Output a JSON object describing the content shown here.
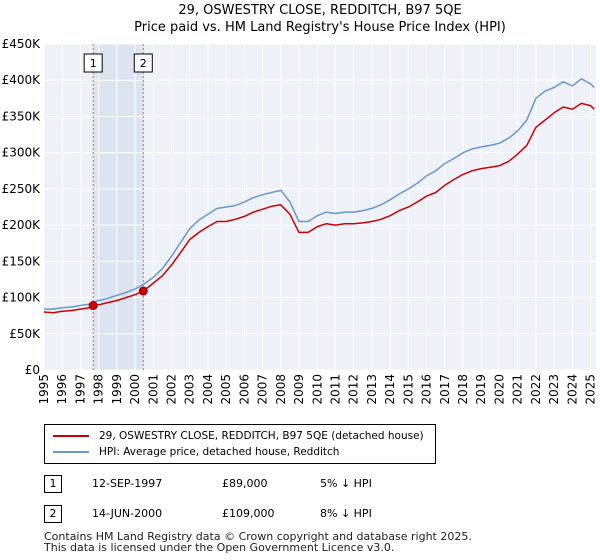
{
  "chart_data": {
    "type": "line",
    "title": "29, OSWESTRY CLOSE, REDDITCH, B97 5QE",
    "subtitle": "Price paid vs. HM Land Registry's House Price Index (HPI)",
    "xlabel": "",
    "ylabel": "",
    "xlim": [
      1995.0,
      2025.3
    ],
    "ylim": [
      0,
      450000
    ],
    "grid": true,
    "y_ticks": [
      {
        "value": 0,
        "label": "£0"
      },
      {
        "value": 50000,
        "label": "£50K"
      },
      {
        "value": 100000,
        "label": "£100K"
      },
      {
        "value": 150000,
        "label": "£150K"
      },
      {
        "value": 200000,
        "label": "£200K"
      },
      {
        "value": 250000,
        "label": "£250K"
      },
      {
        "value": 300000,
        "label": "£300K"
      },
      {
        "value": 350000,
        "label": "£350K"
      },
      {
        "value": 400000,
        "label": "£400K"
      },
      {
        "value": 450000,
        "label": "£450K"
      }
    ],
    "x_ticks": [
      "1995",
      "1996",
      "1997",
      "1998",
      "1999",
      "2000",
      "2001",
      "2002",
      "2003",
      "2004",
      "2005",
      "2006",
      "2007",
      "2008",
      "2009",
      "2010",
      "2011",
      "2012",
      "2013",
      "2014",
      "2015",
      "2016",
      "2017",
      "2018",
      "2019",
      "2020",
      "2021",
      "2022",
      "2023",
      "2024",
      "2025"
    ],
    "shaded_region": [
      1997.7,
      2000.45
    ],
    "series": [
      {
        "name": "29, OSWESTRY CLOSE, REDDITCH, B97 5QE (detached house)",
        "color": "#cc0000",
        "x": [
          1995.0,
          1995.5,
          1996.0,
          1996.5,
          1997.0,
          1997.5,
          1997.7,
          1998.0,
          1998.5,
          1999.0,
          1999.5,
          2000.0,
          2000.45,
          2001.0,
          2001.5,
          2002.0,
          2002.5,
          2003.0,
          2003.5,
          2004.0,
          2004.5,
          2005.0,
          2005.5,
          2006.0,
          2006.5,
          2007.0,
          2007.5,
          2008.0,
          2008.5,
          2009.0,
          2009.5,
          2010.0,
          2010.5,
          2011.0,
          2011.5,
          2012.0,
          2012.5,
          2013.0,
          2013.5,
          2014.0,
          2014.5,
          2015.0,
          2015.5,
          2016.0,
          2016.5,
          2017.0,
          2017.5,
          2018.0,
          2018.5,
          2019.0,
          2019.5,
          2020.0,
          2020.5,
          2021.0,
          2021.5,
          2022.0,
          2022.5,
          2023.0,
          2023.5,
          2024.0,
          2024.5,
          2025.0,
          2025.2
        ],
        "values": [
          80000,
          79000,
          81000,
          82000,
          84000,
          86000,
          89000,
          90000,
          93000,
          96000,
          100000,
          104000,
          109000,
          120000,
          130000,
          145000,
          162000,
          180000,
          190000,
          198000,
          205000,
          205000,
          208000,
          212000,
          218000,
          222000,
          226000,
          228000,
          215000,
          190000,
          190000,
          198000,
          202000,
          200000,
          202000,
          202000,
          203000,
          205000,
          208000,
          213000,
          220000,
          225000,
          232000,
          240000,
          245000,
          255000,
          263000,
          270000,
          275000,
          278000,
          280000,
          282000,
          288000,
          298000,
          310000,
          335000,
          345000,
          355000,
          363000,
          360000,
          368000,
          365000,
          360000
        ]
      },
      {
        "name": "HPI: Average price, detached house, Redditch",
        "color": "#6699cc",
        "x": [
          1995.0,
          1995.5,
          1996.0,
          1996.5,
          1997.0,
          1997.5,
          1997.7,
          1998.0,
          1998.5,
          1999.0,
          1999.5,
          2000.0,
          2000.45,
          2001.0,
          2001.5,
          2002.0,
          2002.5,
          2003.0,
          2003.5,
          2004.0,
          2004.5,
          2005.0,
          2005.5,
          2006.0,
          2006.5,
          2007.0,
          2007.5,
          2008.0,
          2008.5,
          2009.0,
          2009.5,
          2010.0,
          2010.5,
          2011.0,
          2011.5,
          2012.0,
          2012.5,
          2013.0,
          2013.5,
          2014.0,
          2014.5,
          2015.0,
          2015.5,
          2016.0,
          2016.5,
          2017.0,
          2017.5,
          2018.0,
          2018.5,
          2019.0,
          2019.5,
          2020.0,
          2020.5,
          2021.0,
          2021.5,
          2022.0,
          2022.5,
          2023.0,
          2023.5,
          2024.0,
          2024.5,
          2025.0,
          2025.2
        ],
        "values": [
          84000,
          84000,
          86000,
          87000,
          89000,
          91000,
          93000,
          96000,
          99000,
          103000,
          107000,
          112000,
          118000,
          128000,
          140000,
          157000,
          176000,
          195000,
          207000,
          215000,
          223000,
          225000,
          227000,
          232000,
          238000,
          242000,
          245000,
          248000,
          232000,
          205000,
          205000,
          213000,
          218000,
          216000,
          218000,
          218000,
          220000,
          223000,
          228000,
          235000,
          243000,
          250000,
          258000,
          268000,
          275000,
          285000,
          292000,
          300000,
          305000,
          308000,
          310000,
          313000,
          320000,
          330000,
          345000,
          375000,
          385000,
          390000,
          398000,
          392000,
          402000,
          395000,
          390000
        ]
      }
    ],
    "sales": [
      {
        "id": "1",
        "x": 1997.7,
        "value": 89000,
        "date": "12-SEP-1997",
        "price": "£89,000",
        "hpi": "5% ↓ HPI"
      },
      {
        "id": "2",
        "x": 2000.45,
        "value": 109000,
        "date": "14-JUN-2000",
        "price": "£109,000",
        "hpi": "8% ↓ HPI"
      }
    ]
  },
  "legend": {
    "items": [
      {
        "label": "29, OSWESTRY CLOSE, REDDITCH, B97 5QE (detached house)",
        "color": "#cc0000"
      },
      {
        "label": "HPI: Average price, detached house, Redditch",
        "color": "#6699cc"
      }
    ]
  },
  "footer": {
    "line1": "Contains HM Land Registry data © Crown copyright and database right 2025.",
    "line2": "This data is licensed under the Open Government Licence v3.0."
  }
}
